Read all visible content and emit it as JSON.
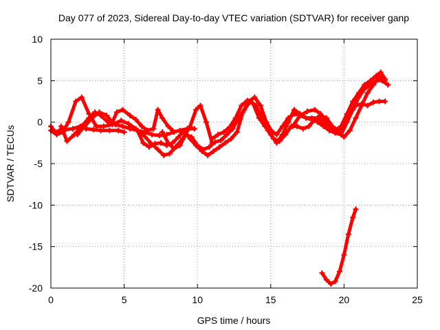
{
  "chart_data": {
    "type": "line",
    "title": "Day 077 of 2023, Sidereal Day-to-day VTEC variation (SDTVAR) for receiver ganp",
    "xlabel": "GPS time / hours",
    "ylabel": "SDTVAR / TECUs",
    "xlim": [
      0,
      25
    ],
    "ylim": [
      -20,
      10
    ],
    "xticks": [
      0,
      5,
      10,
      15,
      20,
      25
    ],
    "yticks": [
      -20,
      -15,
      -10,
      -5,
      0,
      5,
      10
    ],
    "grid": true,
    "colors": {
      "series": "#ff0000"
    },
    "series": [
      {
        "name": "trace-1",
        "x": [
          0.0,
          0.3,
          0.6,
          1.0,
          1.5,
          2.0,
          2.4,
          2.9,
          3.4,
          4.0,
          4.6,
          5.0
        ],
        "y": [
          -0.5,
          -1.2,
          -1.0,
          -0.9,
          -0.8,
          -0.5,
          -0.8,
          -0.9,
          -1.0,
          -1.0,
          -1.0,
          -1.2
        ]
      },
      {
        "name": "trace-2",
        "x": [
          0.0,
          0.4,
          0.8,
          1.2,
          1.7,
          2.1,
          2.6,
          3.1,
          3.6,
          4.2,
          4.8,
          5.3,
          5.8,
          6.3,
          6.8,
          7.3,
          7.7,
          8.1,
          8.5,
          9.0,
          9.5,
          9.9,
          10.2,
          10.6,
          11.0
        ],
        "y": [
          -1.0,
          -1.5,
          -1.2,
          0.0,
          2.5,
          3.0,
          1.0,
          -0.5,
          -0.5,
          -0.3,
          0.2,
          -0.2,
          -0.8,
          -1.5,
          -2.5,
          -3.3,
          -4.0,
          -3.8,
          -3.0,
          -2.0,
          -0.5,
          1.5,
          2.0,
          0.0,
          -2.5
        ]
      },
      {
        "name": "trace-3",
        "x": [
          0.7,
          1.1,
          1.6,
          2.1,
          2.6,
          3.0,
          3.4,
          3.9,
          4.4,
          4.9,
          5.4,
          5.9,
          6.4,
          6.9,
          7.4,
          7.9,
          8.4,
          8.8,
          9.3,
          9.8
        ],
        "y": [
          -0.5,
          -2.3,
          -1.5,
          -0.5,
          0.5,
          1.2,
          0.8,
          0.0,
          -0.3,
          -0.5,
          -0.8,
          -1.0,
          -1.2,
          -1.5,
          -1.6,
          -1.5,
          -1.2,
          -1.0,
          -0.8,
          -0.8
        ]
      },
      {
        "name": "trace-4",
        "x": [
          1.8,
          2.3,
          2.8,
          3.3,
          3.8,
          4.2,
          4.5,
          4.9,
          5.4,
          5.8,
          6.2,
          6.6,
          7.0,
          7.3,
          7.6,
          8.0,
          8.3
        ],
        "y": [
          -1.5,
          -0.5,
          0.5,
          1.2,
          0.8,
          0.0,
          1.2,
          1.5,
          0.8,
          0.3,
          -0.5,
          -1.0,
          -0.8,
          1.5,
          0.5,
          -0.5,
          -1.0
        ]
      },
      {
        "name": "trace-5",
        "x": [
          5.5,
          5.9,
          6.3,
          6.7,
          7.1,
          7.5,
          7.9,
          8.3,
          8.7,
          9.1,
          9.5,
          9.9,
          10.3,
          10.7,
          11.1,
          11.5,
          11.9,
          12.3,
          12.7,
          13.1,
          13.5,
          13.9,
          14.3,
          14.7,
          15.1
        ],
        "y": [
          -0.6,
          -1.0,
          -2.5,
          -3.0,
          -2.6,
          -2.5,
          -2.8,
          -2.5,
          -1.8,
          -1.0,
          -2.0,
          -2.8,
          -3.5,
          -4.0,
          -3.5,
          -3.0,
          -2.5,
          -2.0,
          -1.2,
          1.2,
          2.5,
          3.0,
          2.0,
          0.0,
          -1.2
        ]
      },
      {
        "name": "trace-6",
        "x": [
          7.6,
          8.0,
          8.4,
          8.8,
          9.2,
          9.6,
          10.0,
          10.4,
          10.8,
          11.2,
          11.6,
          12.0,
          12.4,
          12.8,
          13.2,
          13.6,
          14.0,
          14.4,
          14.8,
          15.2,
          15.6,
          16.0,
          16.4,
          16.8,
          17.2,
          17.6,
          18.0,
          18.4,
          18.8,
          19.2,
          19.6,
          20.0,
          20.4,
          20.8,
          21.2,
          21.6,
          22.0,
          22.4,
          22.8
        ],
        "y": [
          -1.2,
          -2.5,
          -3.2,
          -2.8,
          -1.5,
          -1.8,
          -2.8,
          -3.3,
          -3.0,
          -2.4,
          -2.2,
          -1.5,
          -0.8,
          0.5,
          1.5,
          2.5,
          2.0,
          0.5,
          -1.0,
          -2.0,
          -2.3,
          -1.5,
          -0.5,
          -0.5,
          -0.8,
          -0.5,
          0.3,
          0.8,
          0.5,
          -0.5,
          -1.0,
          -0.5,
          1.0,
          2.0,
          2.2,
          2.0,
          2.4,
          2.5,
          2.5
        ]
      },
      {
        "name": "trace-7",
        "x": [
          11.0,
          11.4,
          11.8,
          12.2,
          12.6,
          13.0,
          13.4,
          13.8,
          14.2,
          14.6,
          15.0,
          15.4,
          15.8,
          16.2,
          16.6,
          17.0,
          17.4,
          17.8,
          18.2,
          18.6,
          19.0,
          19.4,
          19.8,
          20.2,
          20.6,
          21.0,
          21.4,
          21.8,
          22.2,
          22.5,
          22.8
        ],
        "y": [
          -2.0,
          -1.5,
          -1.2,
          -0.6,
          0.5,
          2.0,
          2.6,
          2.2,
          0.5,
          -0.5,
          -1.0,
          -1.5,
          -0.5,
          0.5,
          1.0,
          0.8,
          0.5,
          0.5,
          0.5,
          0.0,
          -0.5,
          -1.0,
          -0.5,
          1.0,
          2.5,
          3.5,
          4.5,
          5.0,
          5.6,
          6.0,
          5.2
        ]
      },
      {
        "name": "trace-8",
        "x": [
          15.0,
          15.4,
          15.8,
          16.2,
          16.6,
          17.0,
          17.4,
          17.8,
          18.2,
          18.6,
          19.0,
          19.4,
          19.8,
          20.2,
          20.6,
          21.0,
          21.4,
          21.8,
          22.2,
          22.6,
          23.0
        ],
        "y": [
          -1.5,
          -2.5,
          -1.5,
          0.0,
          1.5,
          1.0,
          0.5,
          0.3,
          0.0,
          -0.5,
          -1.0,
          -1.3,
          -1.5,
          0.0,
          1.5,
          3.0,
          4.0,
          4.5,
          5.0,
          5.0,
          4.5
        ]
      },
      {
        "name": "trace-9",
        "x": [
          16.5,
          17.0,
          17.5,
          18.0,
          18.4,
          18.8,
          19.2,
          19.6,
          20.0,
          20.4,
          20.8,
          21.2,
          21.6,
          22.0,
          22.4,
          22.8
        ],
        "y": [
          -0.5,
          0.8,
          1.3,
          1.5,
          1.0,
          0.0,
          -0.8,
          -1.2,
          -1.8,
          -1.0,
          0.5,
          2.0,
          3.5,
          4.5,
          5.5,
          5.0
        ]
      },
      {
        "name": "trace-10",
        "x": [
          18.5,
          18.8,
          19.1,
          19.4,
          19.7,
          20.0,
          20.3,
          20.6,
          20.8
        ],
        "y": [
          -18.2,
          -19.0,
          -19.5,
          -19.2,
          -18.0,
          -16.0,
          -13.5,
          -11.5,
          -10.5
        ]
      }
    ]
  }
}
